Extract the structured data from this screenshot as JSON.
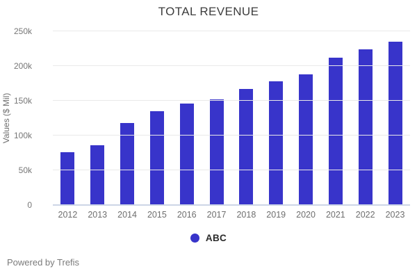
{
  "chart_data": {
    "type": "bar",
    "title": "TOTAL REVENUE",
    "xlabel": "",
    "ylabel": "Values ($ Mil)",
    "categories": [
      "2012",
      "2013",
      "2014",
      "2015",
      "2016",
      "2017",
      "2018",
      "2019",
      "2020",
      "2021",
      "2022",
      "2023"
    ],
    "series": [
      {
        "name": "ABC",
        "color": "#3834ca",
        "values": [
          76000,
          86000,
          118000,
          135000,
          146000,
          152000,
          167000,
          178000,
          188000,
          212000,
          224000,
          235000
        ]
      }
    ],
    "ylim": [
      0,
      250000
    ],
    "yticks": [
      {
        "value": 0,
        "label": "0"
      },
      {
        "value": 50000,
        "label": "50k"
      },
      {
        "value": 100000,
        "label": "100k"
      },
      {
        "value": 150000,
        "label": "150k"
      },
      {
        "value": 200000,
        "label": "200k"
      },
      {
        "value": 250000,
        "label": "250k"
      }
    ],
    "grid": "horizontal",
    "legend_position": "bottom-center"
  },
  "legend": {
    "items": [
      "ABC"
    ]
  },
  "footer": {
    "text": "Powered by Trefis"
  }
}
